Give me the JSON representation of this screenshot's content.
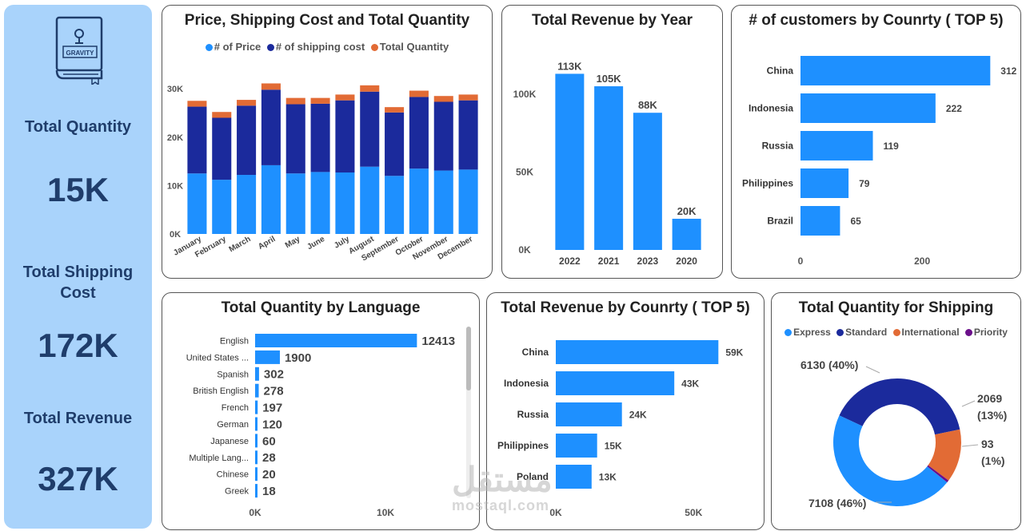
{
  "sidebar": {
    "logo_text": "GRAVITY",
    "kpis": [
      {
        "label": "Total Quantity",
        "value": "15K"
      },
      {
        "label": "Total Shipping Cost",
        "value": "172K"
      },
      {
        "label": "Total Revenue",
        "value": "327K"
      }
    ]
  },
  "colors": {
    "blue": "#1e90ff",
    "navy": "#1b2a9c",
    "orange": "#e26b35",
    "purple": "#6b0f8a",
    "sidebar": "#a9d3fb",
    "kpi_text": "#1f3d6b"
  },
  "watermark": {
    "arabic": "مستقل",
    "latin": "mostaql.com"
  },
  "chart_data": [
    {
      "id": "price_shipping_quantity",
      "type": "bar",
      "stacked": true,
      "title": "Price, Shipping Cost and Total Quantity",
      "categories": [
        "January",
        "February",
        "March",
        "April",
        "May",
        "June",
        "July",
        "August",
        "September",
        "October",
        "November",
        "December"
      ],
      "series": [
        {
          "name": "# of Price",
          "color": "#1e90ff",
          "values": [
            12500,
            11200,
            12200,
            14200,
            12500,
            12800,
            12700,
            13900,
            12000,
            13500,
            13100,
            13300
          ]
        },
        {
          "name": "# of shipping cost",
          "color": "#1b2a9c",
          "values": [
            13800,
            12800,
            14300,
            15600,
            14300,
            14100,
            14900,
            15500,
            13100,
            14800,
            14200,
            14300
          ]
        },
        {
          "name": "Total Quantity",
          "color": "#e26b35",
          "values": [
            1200,
            1200,
            1200,
            1300,
            1300,
            1200,
            1200,
            1300,
            1100,
            1300,
            1200,
            1200
          ]
        }
      ],
      "yticks": [
        "0K",
        "10K",
        "20K",
        "30K"
      ],
      "ylim": [
        0,
        32000
      ]
    },
    {
      "id": "revenue_by_year",
      "type": "bar",
      "title": "Total Revenue by Year",
      "categories": [
        "2022",
        "2021",
        "2023",
        "2020"
      ],
      "values": [
        113,
        105,
        88,
        20
      ],
      "value_labels": [
        "113K",
        "105K",
        "88K",
        "20K"
      ],
      "yticks": [
        "0K",
        "50K",
        "100K"
      ],
      "ylim": [
        0,
        125
      ]
    },
    {
      "id": "customers_by_country",
      "type": "bar",
      "orientation": "horizontal",
      "title": "# of customers by Counrty ( TOP 5)",
      "categories": [
        "China",
        "Indonesia",
        "Russia",
        "Philippines",
        "Brazil"
      ],
      "values": [
        312,
        222,
        119,
        79,
        65
      ],
      "value_labels": [
        "312",
        "222",
        "119",
        "79",
        "65"
      ],
      "xticks": [
        "0",
        "200"
      ],
      "xlim": [
        0,
        330
      ]
    },
    {
      "id": "quantity_by_language",
      "type": "bar",
      "orientation": "horizontal",
      "title": "Total Quantity by Language",
      "categories": [
        "English",
        "United States ...",
        "Spanish",
        "British English",
        "French",
        "German",
        "Japanese",
        "Multiple Lang...",
        "Chinese",
        "Greek"
      ],
      "values": [
        12413,
        1900,
        302,
        278,
        197,
        120,
        60,
        28,
        20,
        18
      ],
      "value_labels": [
        "12413",
        "1900",
        "302",
        "278",
        "197",
        "120",
        "60",
        "28",
        "20",
        "18"
      ],
      "xticks": [
        "0K",
        "10K"
      ],
      "xlim": [
        0,
        16500
      ]
    },
    {
      "id": "revenue_by_country",
      "type": "bar",
      "orientation": "horizontal",
      "title": "Total Revenue by Counrty ( TOP 5)",
      "categories": [
        "China",
        "Indonesia",
        "Russia",
        "Philippines",
        "Poland"
      ],
      "values": [
        59,
        43,
        24,
        15,
        13
      ],
      "value_labels": [
        "59K",
        "43K",
        "24K",
        "15K",
        "13K"
      ],
      "xticks": [
        "0K",
        "50K"
      ],
      "xlim": [
        0,
        65
      ]
    },
    {
      "id": "quantity_for_shipping",
      "type": "pie",
      "donut": true,
      "title": "Total Quantity for Shipping",
      "series": [
        {
          "name": "Express",
          "color": "#1e90ff",
          "value": 7108,
          "label": "7108 (46%)"
        },
        {
          "name": "Standard",
          "color": "#1b2a9c",
          "value": 6130,
          "label": "6130 (40%)"
        },
        {
          "name": "International",
          "color": "#e26b35",
          "value": 2069,
          "label": "2069",
          "pct": "(13%)"
        },
        {
          "name": "Priority",
          "color": "#6b0f8a",
          "value": 93,
          "label": "93",
          "pct": "(1%)"
        }
      ]
    }
  ]
}
